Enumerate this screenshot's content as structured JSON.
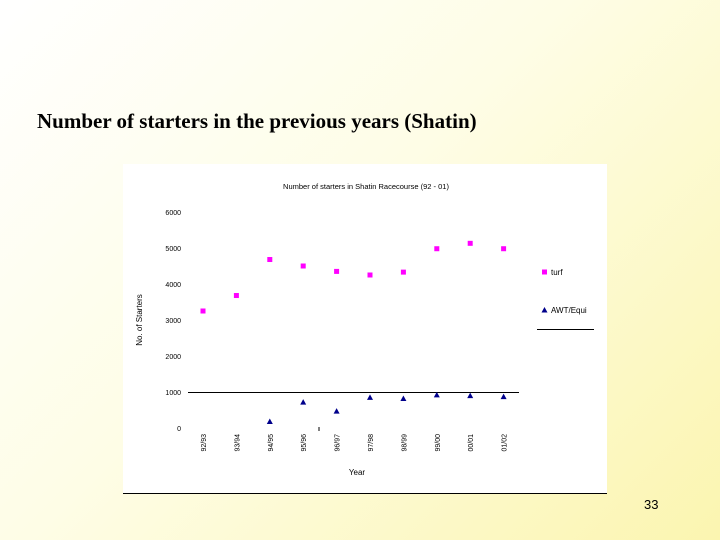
{
  "slide": {
    "title": "Number of starters in the previous years (Shatin)",
    "page_number": "33"
  },
  "chart_data": {
    "type": "scatter",
    "title": "Number of starters in Shatin Racecourse (92 - 01)",
    "xlabel": "Year",
    "ylabel": "No. of Starters",
    "categories": [
      "92/93",
      "93/94",
      "94/95",
      "95/96",
      "96/97",
      "97/98",
      "98/99",
      "99/00",
      "00/01",
      "01/02"
    ],
    "ylim": [
      0,
      6000
    ],
    "yticks": [
      0,
      1000,
      2000,
      3000,
      4000,
      5000,
      6000
    ],
    "grid": false,
    "legend_position": "right",
    "series": [
      {
        "name": "turf",
        "color": "#ff00ff",
        "marker": "square",
        "values": [
          3250,
          3680,
          4680,
          4500,
          4350,
          4250,
          4330,
          4980,
          5130,
          4980
        ]
      },
      {
        "name": "AWT/Equi",
        "color": "#00008b",
        "marker": "triangle",
        "values": [
          null,
          null,
          180,
          720,
          470,
          850,
          820,
          920,
          900,
          870
        ]
      }
    ]
  }
}
